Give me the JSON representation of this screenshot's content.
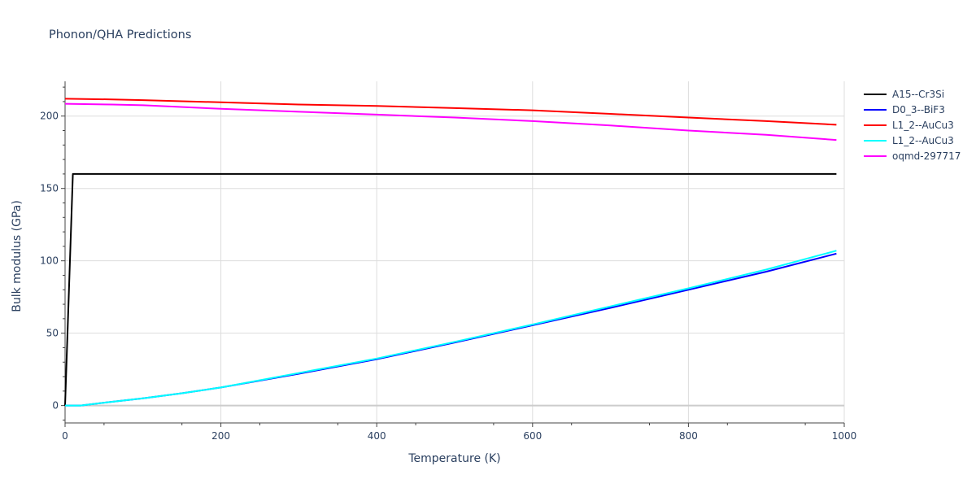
{
  "chart_data": {
    "type": "line",
    "title": "Phonon/QHA Predictions",
    "xlabel": "Temperature (K)",
    "ylabel": "Bulk modulus (GPa)",
    "xlim": [
      0,
      1000
    ],
    "ylim": [
      -12,
      224
    ],
    "x_ticks": [
      0,
      200,
      400,
      600,
      800,
      1000
    ],
    "y_ticks": [
      0,
      50,
      100,
      150,
      200
    ],
    "grid": true,
    "legend_position": "right",
    "series": [
      {
        "name": "A15--Cr3Si",
        "color": "#000000",
        "x": [
          0,
          10,
          100,
          200,
          300,
          400,
          500,
          600,
          700,
          800,
          900,
          990
        ],
        "y": [
          0,
          160,
          160,
          160,
          160,
          160,
          160,
          160,
          160,
          160,
          160,
          160
        ]
      },
      {
        "name": "D0_3--BiF3",
        "color": "#0000ff",
        "x": [
          0,
          20,
          50,
          100,
          150,
          200,
          300,
          400,
          500,
          600,
          700,
          800,
          900,
          990
        ],
        "y": [
          0,
          0,
          2,
          5,
          8.5,
          12.5,
          22,
          32,
          43.5,
          55.5,
          67.5,
          80,
          92.5,
          105
        ]
      },
      {
        "name": "L1_2--AuCu3",
        "color": "#ff0000",
        "x": [
          0,
          60,
          100,
          200,
          300,
          400,
          500,
          600,
          700,
          800,
          900,
          990
        ],
        "y": [
          212,
          211.5,
          211,
          209.5,
          208,
          207,
          205.5,
          204,
          201.5,
          199,
          196.5,
          194
        ]
      },
      {
        "name": "L1_2--AuCu3",
        "color": "#00ffff",
        "x": [
          0,
          20,
          50,
          100,
          150,
          200,
          300,
          400,
          500,
          600,
          700,
          800,
          900,
          990
        ],
        "y": [
          0,
          0,
          2,
          5,
          8.5,
          12.5,
          22.5,
          32.5,
          44,
          56,
          68.5,
          81,
          94,
          107
        ]
      },
      {
        "name": "oqmd-297717",
        "color": "#ff00ff",
        "x": [
          0,
          60,
          100,
          200,
          300,
          400,
          500,
          600,
          700,
          800,
          900,
          990
        ],
        "y": [
          208.5,
          208,
          207.5,
          205,
          203,
          201,
          199,
          196.5,
          193.5,
          190,
          187,
          183.5
        ]
      }
    ]
  }
}
